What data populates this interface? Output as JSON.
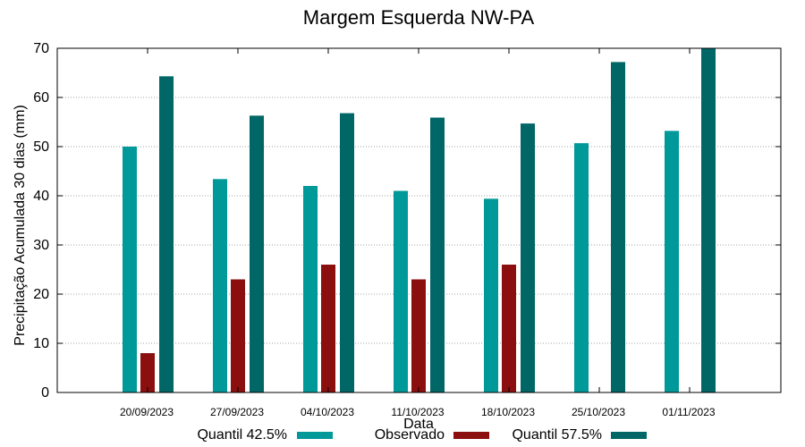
{
  "chart_data": {
    "type": "bar",
    "title": "Margem Esquerda NW-PA",
    "xlabel": "Data",
    "ylabel": "Precipitação Acumulada 30 dias (mm)",
    "ylim": [
      0,
      70
    ],
    "yticks": [
      0,
      10,
      20,
      30,
      40,
      50,
      60,
      70
    ],
    "grid": true,
    "legend_position": "bottom",
    "categories": [
      "20/09/2023",
      "27/09/2023",
      "04/10/2023",
      "11/10/2023",
      "18/10/2023",
      "25/10/2023",
      "01/11/2023"
    ],
    "series": [
      {
        "name": "Quantil 42.5%",
        "color": "#009999",
        "values": [
          50.0,
          43.4,
          42.0,
          41.0,
          39.4,
          50.7,
          53.2
        ]
      },
      {
        "name": "Observado",
        "color": "#8b0f0f",
        "values": [
          8.0,
          23.0,
          26.0,
          23.0,
          26.0,
          null,
          null
        ]
      },
      {
        "name": "Quantil 57.5%",
        "color": "#006666",
        "values": [
          64.3,
          56.3,
          56.8,
          55.9,
          54.7,
          67.2,
          70.0
        ]
      }
    ]
  }
}
